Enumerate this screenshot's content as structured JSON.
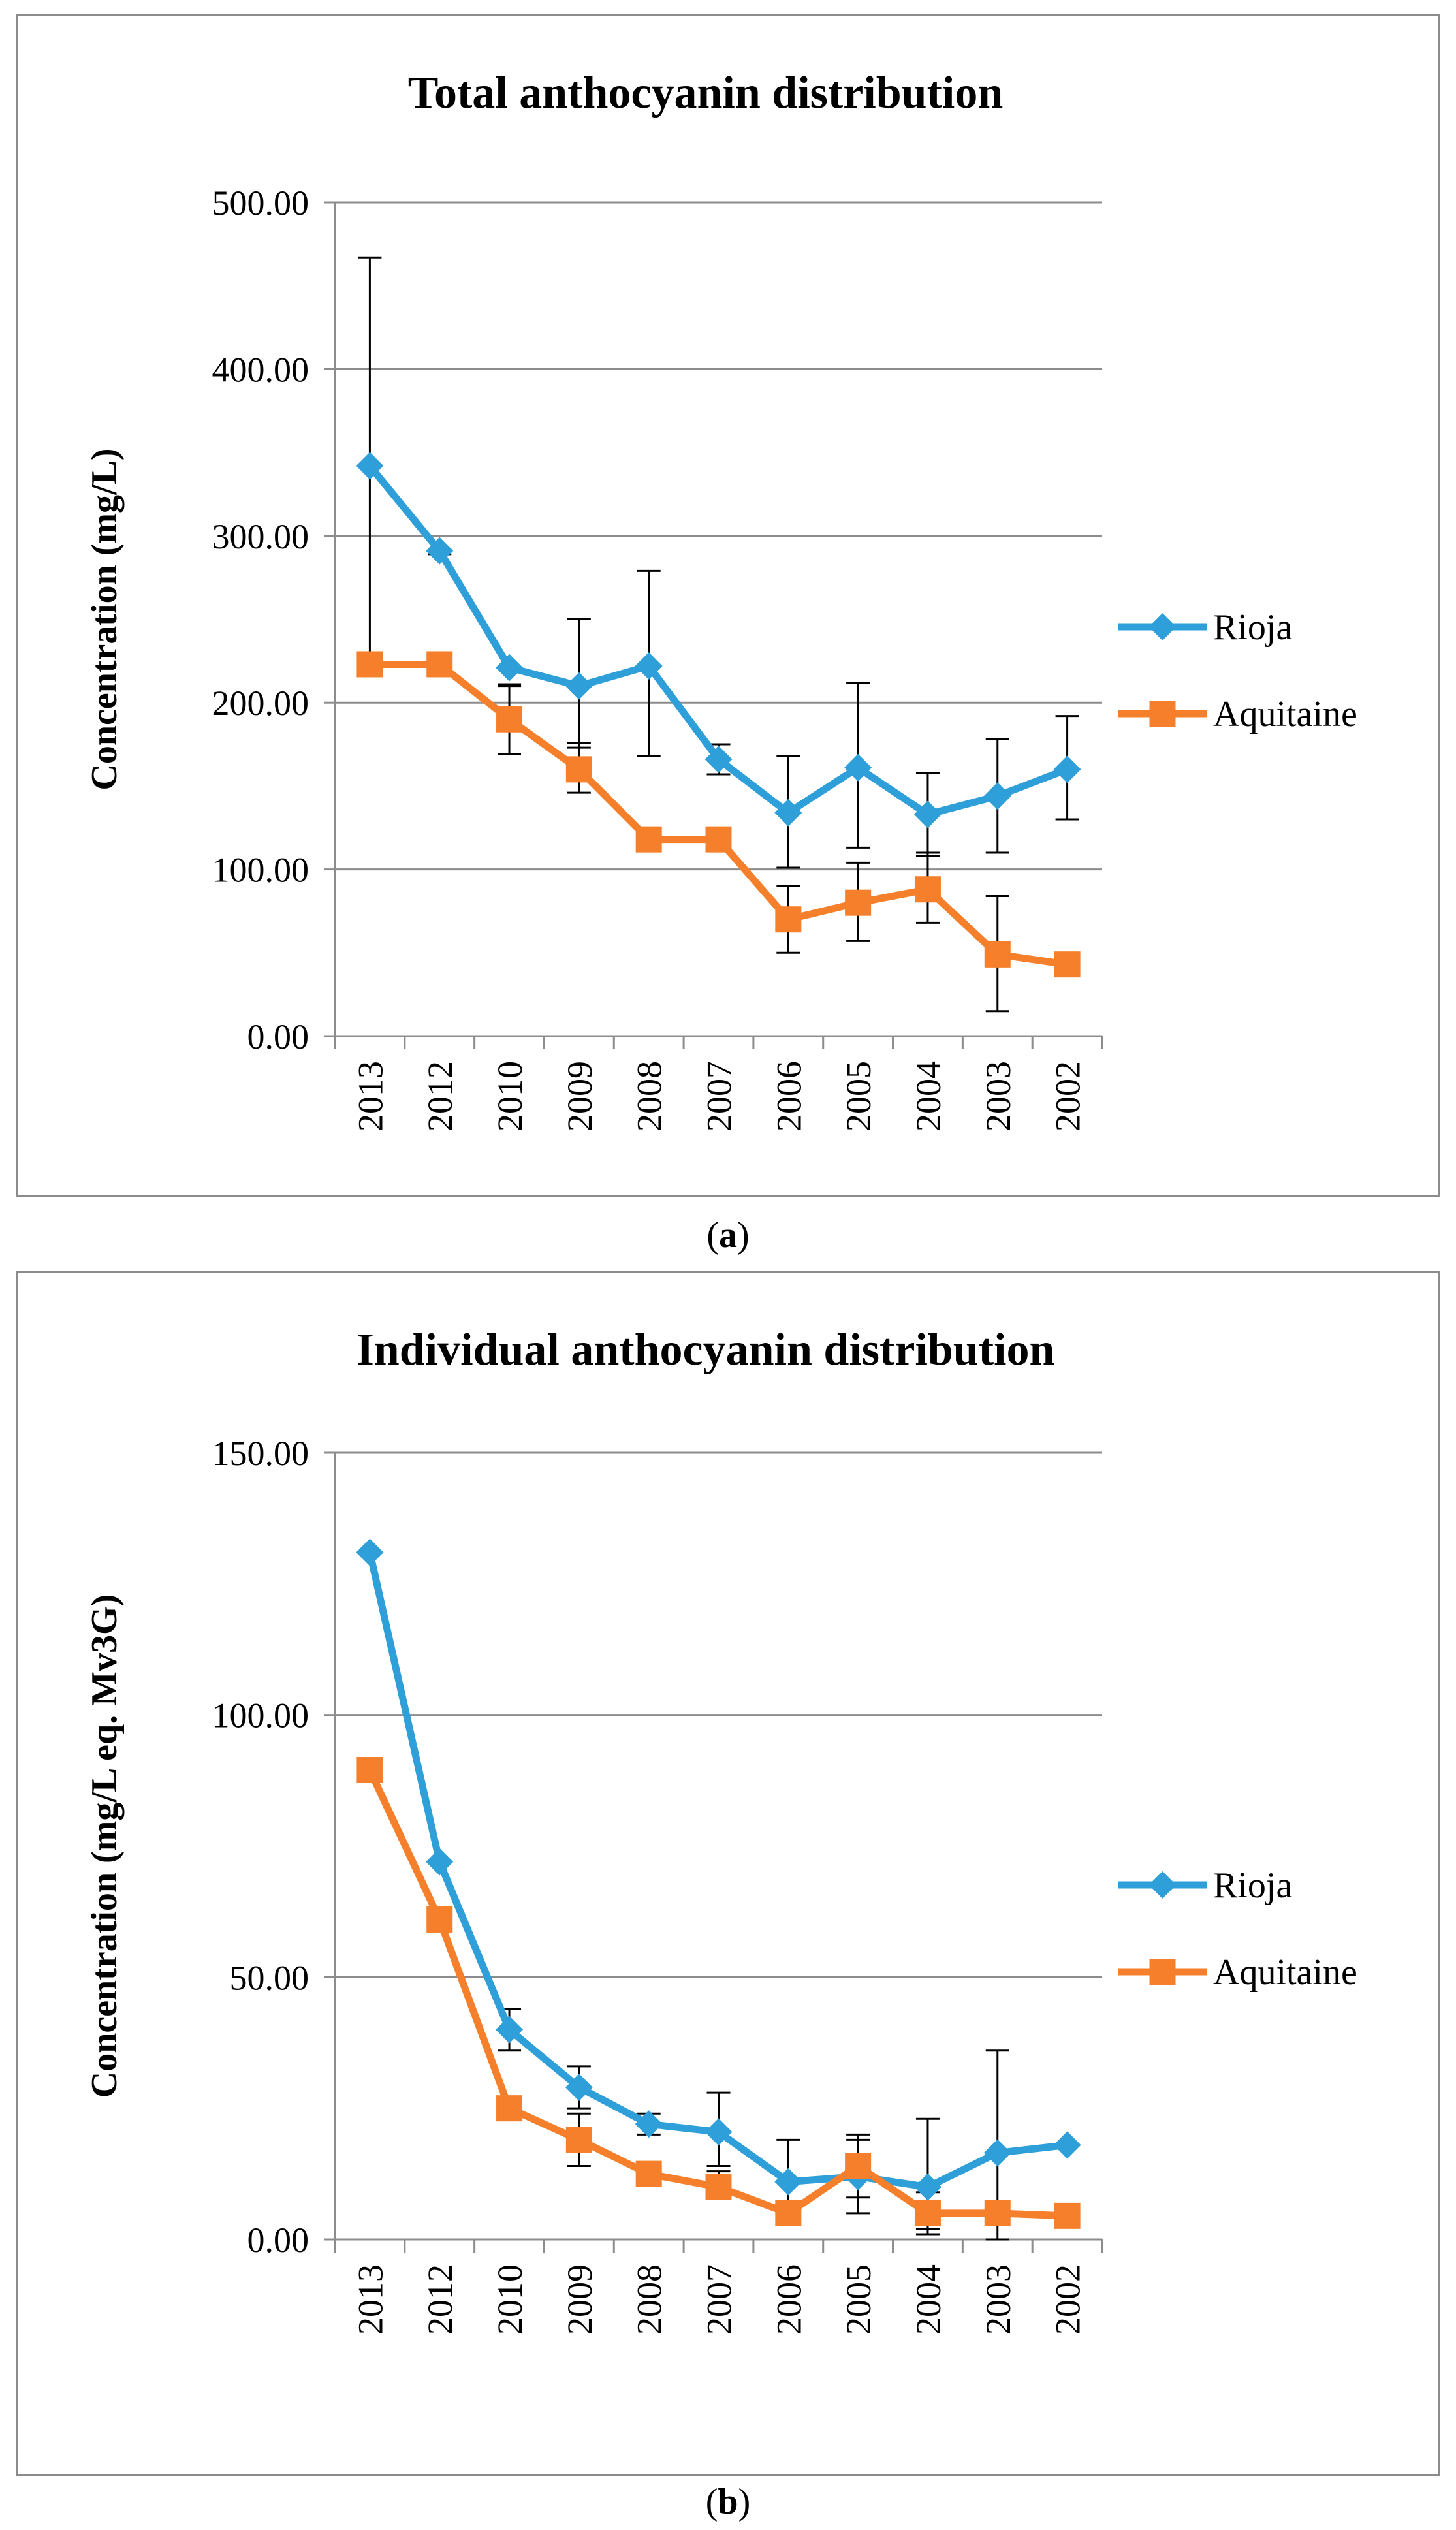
{
  "chart_data": [
    {
      "id": "a",
      "type": "line",
      "title": "Total anthocyanin distribution",
      "xlabel": "",
      "ylabel": "Concentration (mg/L)",
      "categories": [
        "2013",
        "2012",
        "2010",
        "2009",
        "2008",
        "2007",
        "2006",
        "2005",
        "2004",
        "2003",
        "2002"
      ],
      "ylim": [
        0,
        500
      ],
      "yticks": [
        0,
        100,
        200,
        300,
        400,
        500
      ],
      "ytick_labels": [
        "0.00",
        "100.00",
        "200.00",
        "300.00",
        "400.00",
        "500.00"
      ],
      "grid": true,
      "legend_position": "right",
      "series": [
        {
          "name": "Rioja",
          "color": "#2e9fd8",
          "marker": "diamond",
          "values": [
            342,
            291,
            221,
            210,
            222,
            166,
            134,
            161,
            133,
            144,
            160
          ],
          "error_low": [
            228,
            289,
            210,
            173,
            168,
            157,
            101,
            113,
            108,
            110,
            130
          ],
          "error_high": [
            467,
            292,
            211,
            250,
            279,
            175,
            168,
            212,
            158,
            178,
            192
          ]
        },
        {
          "name": "Aquitaine",
          "color": "#f57f2a",
          "marker": "square",
          "values": [
            223,
            223,
            190,
            160,
            118,
            118,
            70,
            80,
            88,
            49,
            43
          ],
          "error_low": [
            223,
            223,
            169,
            146,
            118,
            118,
            50,
            57,
            68,
            15,
            43
          ],
          "error_high": [
            223,
            223,
            211,
            176,
            118,
            118,
            90,
            104,
            110,
            84,
            43
          ]
        }
      ]
    },
    {
      "id": "b",
      "type": "line",
      "title": "Individual anthocyanin distribution",
      "xlabel": "",
      "ylabel": "Concentration (mg/L eq. Mv3G)",
      "categories": [
        "2013",
        "2012",
        "2010",
        "2009",
        "2008",
        "2007",
        "2006",
        "2005",
        "2004",
        "2003",
        "2002"
      ],
      "ylim": [
        0,
        150
      ],
      "yticks": [
        0,
        50,
        100,
        150
      ],
      "ytick_labels": [
        "0.00",
        "50.00",
        "100.00",
        "150.00"
      ],
      "grid": true,
      "legend_position": "right",
      "series": [
        {
          "name": "Rioja",
          "color": "#2e9fd8",
          "marker": "diamond",
          "values": [
            131,
            72,
            40,
            29,
            22,
            20.5,
            11,
            12,
            10,
            16.5,
            18
          ],
          "error_low": [
            131,
            72,
            36,
            25,
            20,
            14,
            4,
            5,
            2,
            0,
            18
          ],
          "error_high": [
            131,
            72,
            44,
            33,
            24,
            28,
            19,
            20,
            23,
            36,
            18
          ]
        },
        {
          "name": "Aquitaine",
          "color": "#f57f2a",
          "marker": "square",
          "values": [
            89.5,
            61,
            25,
            19,
            12.5,
            10,
            5,
            14,
            5,
            5,
            4.5
          ],
          "error_low": [
            89.5,
            61,
            25,
            14,
            12.5,
            8,
            5,
            8,
            1,
            5,
            4.5
          ],
          "error_high": [
            89.5,
            61,
            25,
            24,
            12.5,
            13,
            5,
            19,
            9,
            5,
            4.5
          ]
        }
      ]
    }
  ],
  "captions": {
    "a": "a",
    "b": "b"
  }
}
